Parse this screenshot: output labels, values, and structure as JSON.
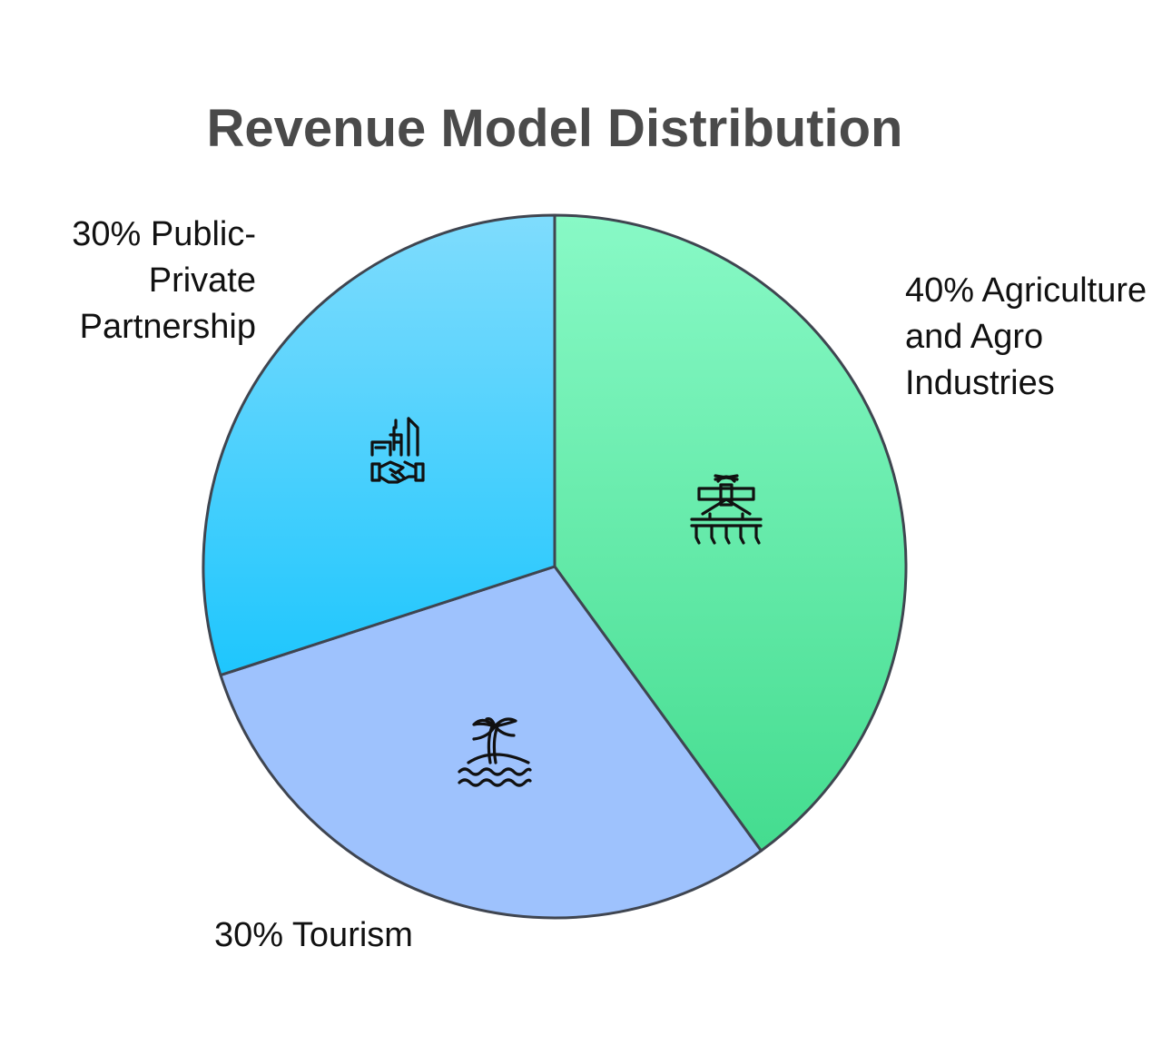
{
  "chart_data": {
    "type": "pie",
    "title": "Revenue Model Distribution",
    "slices": [
      {
        "name": "Agriculture and Agro Industries",
        "value": 40,
        "label": "40% Agriculture and Agro Industries",
        "icon": "farm-icon",
        "color_top": "#88f9c6",
        "color_bottom": "#44dc8f"
      },
      {
        "name": "Tourism",
        "value": 30,
        "label": "30% Tourism",
        "icon": "island-palm-icon",
        "color_top": "#9ec2fd",
        "color_bottom": "#9ec2fd"
      },
      {
        "name": "Public-Private Partnership",
        "value": 30,
        "label": "30% Public-Private Partnership",
        "icon": "handshake-buildings-icon",
        "color_top": "#7fdcfd",
        "color_bottom": "#1ec6fd"
      }
    ],
    "stroke_color": "#3f4550",
    "legend": "none"
  },
  "labels": {
    "ppp": "30% Public-Private Partnership",
    "agri": "40% Agriculture and Agro Industries",
    "tourism": "30% Tourism"
  }
}
